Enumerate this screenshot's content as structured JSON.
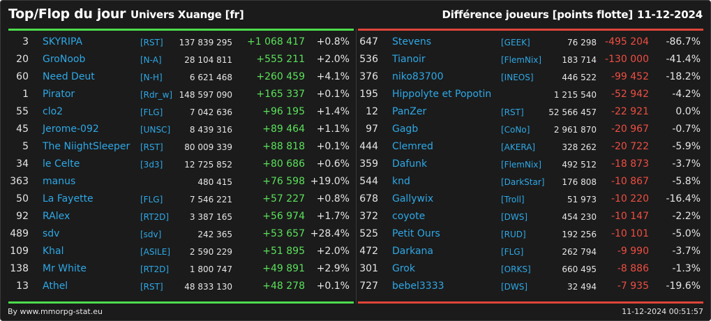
{
  "header": {
    "title": "Top/Flop du jour",
    "subtitle": "Univers Xuange [fr]",
    "metric": "Différence joueurs [points flotte]",
    "date": "11-12-2024"
  },
  "colors": {
    "top": "#4ddc4d",
    "flop": "#e0453a",
    "link": "#2ea8e6",
    "background": "#1b1b1b"
  },
  "top": [
    {
      "rank": "3",
      "name": "SKYRIPA",
      "guild": "[RST]",
      "total": "137 839 295",
      "diff": "+1 068 417",
      "pct": "+0.8%"
    },
    {
      "rank": "20",
      "name": "GroNoob",
      "guild": "[N-A]",
      "total": "28 104 811",
      "diff": "+555 211",
      "pct": "+2.0%"
    },
    {
      "rank": "60",
      "name": "Need Deut",
      "guild": "[N-H]",
      "total": "6 621 468",
      "diff": "+260 459",
      "pct": "+4.1%"
    },
    {
      "rank": "1",
      "name": "Pirator",
      "guild": "[Rdr_w]",
      "total": "148 597 090",
      "diff": "+165 337",
      "pct": "+0.1%"
    },
    {
      "rank": "55",
      "name": "clo2",
      "guild": "[FLG]",
      "total": "7 042 636",
      "diff": "+96 195",
      "pct": "+1.4%"
    },
    {
      "rank": "45",
      "name": "Jerome-092",
      "guild": "[UNSC]",
      "total": "8 439 316",
      "diff": "+89 464",
      "pct": "+1.1%"
    },
    {
      "rank": "5",
      "name": "The NiightSleeper",
      "guild": "[RST]",
      "total": "80 009 339",
      "diff": "+88 818",
      "pct": "+0.1%"
    },
    {
      "rank": "34",
      "name": "le Celte",
      "guild": "[3d3]",
      "total": "12 725 852",
      "diff": "+80 686",
      "pct": "+0.6%"
    },
    {
      "rank": "363",
      "name": "manus",
      "guild": "",
      "total": "480 415",
      "diff": "+76 598",
      "pct": "+19.0%"
    },
    {
      "rank": "50",
      "name": "La Fayette",
      "guild": "[FLG]",
      "total": "7 546 221",
      "diff": "+57 227",
      "pct": "+0.8%"
    },
    {
      "rank": "92",
      "name": "RAlex",
      "guild": "[RT2D]",
      "total": "3 387 165",
      "diff": "+56 974",
      "pct": "+1.7%"
    },
    {
      "rank": "489",
      "name": "sdv",
      "guild": "[sdv]",
      "total": "242 365",
      "diff": "+53 657",
      "pct": "+28.4%"
    },
    {
      "rank": "109",
      "name": "Khal",
      "guild": "[ASILE]",
      "total": "2 590 229",
      "diff": "+51 895",
      "pct": "+2.0%"
    },
    {
      "rank": "138",
      "name": "Mr White",
      "guild": "[RT2D]",
      "total": "1 800 747",
      "diff": "+49 891",
      "pct": "+2.9%"
    },
    {
      "rank": "13",
      "name": "Athel",
      "guild": "[RST]",
      "total": "48 833 130",
      "diff": "+48 278",
      "pct": "+0.1%"
    }
  ],
  "flop": [
    {
      "rank": "647",
      "name": "Stevens",
      "guild": "[GEEK]",
      "total": "76 298",
      "diff": "-495 204",
      "pct": "-86.7%"
    },
    {
      "rank": "536",
      "name": "Tianoir",
      "guild": "[FlemNix]",
      "total": "183 714",
      "diff": "-130 000",
      "pct": "-41.4%"
    },
    {
      "rank": "376",
      "name": "niko83700",
      "guild": "[INEOS]",
      "total": "446 522",
      "diff": "-99 452",
      "pct": "-18.2%"
    },
    {
      "rank": "195",
      "name": "Hippolyte et Popotin",
      "guild": "",
      "total": "1 215 540",
      "diff": "-52 942",
      "pct": "-4.2%"
    },
    {
      "rank": "12",
      "name": "PanZer",
      "guild": "[RST]",
      "total": "52 566 457",
      "diff": "-22 921",
      "pct": "0.0%"
    },
    {
      "rank": "97",
      "name": "Gagb",
      "guild": "[CoNo]",
      "total": "2 961 870",
      "diff": "-20 967",
      "pct": "-0.7%"
    },
    {
      "rank": "444",
      "name": "Clemred",
      "guild": "[AKERA]",
      "total": "328 262",
      "diff": "-20 722",
      "pct": "-5.9%"
    },
    {
      "rank": "359",
      "name": "Dafunk",
      "guild": "[FlemNix]",
      "total": "492 512",
      "diff": "-18 873",
      "pct": "-3.7%"
    },
    {
      "rank": "544",
      "name": "knd",
      "guild": "[DarkStar]",
      "total": "176 808",
      "diff": "-10 867",
      "pct": "-5.8%"
    },
    {
      "rank": "678",
      "name": "Gallywix",
      "guild": "[Troll]",
      "total": "51 973",
      "diff": "-10 220",
      "pct": "-16.4%"
    },
    {
      "rank": "372",
      "name": "coyote",
      "guild": "[DWS]",
      "total": "454 230",
      "diff": "-10 147",
      "pct": "-2.2%"
    },
    {
      "rank": "525",
      "name": "Petit Ours",
      "guild": "[RUD]",
      "total": "192 256",
      "diff": "-10 101",
      "pct": "-5.0%"
    },
    {
      "rank": "472",
      "name": "Darkana",
      "guild": "[FLG]",
      "total": "262 794",
      "diff": "-9 990",
      "pct": "-3.7%"
    },
    {
      "rank": "301",
      "name": "Grok",
      "guild": "[ORKS]",
      "total": "660 495",
      "diff": "-8 886",
      "pct": "-1.3%"
    },
    {
      "rank": "727",
      "name": "bebel3333",
      "guild": "[DWS]",
      "total": "32 494",
      "diff": "-7 935",
      "pct": "-19.6%"
    }
  ],
  "footer": {
    "credit": "By www.mmorpg-stat.eu",
    "timestamp": "11-12-2024 00:51:57"
  }
}
